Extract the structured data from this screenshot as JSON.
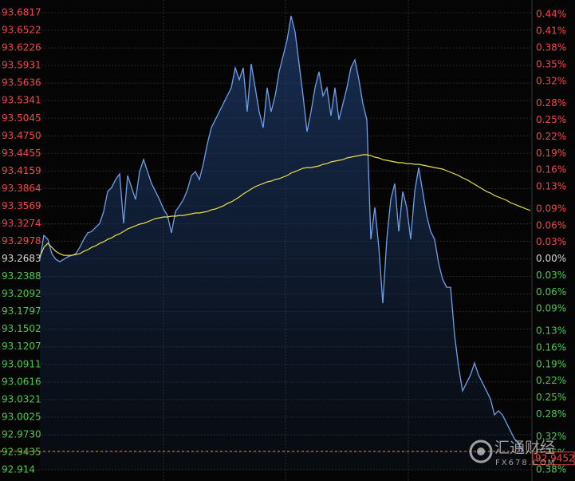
{
  "chart_data": {
    "type": "line",
    "up_color": "#f04848",
    "down_color": "#4cc94c",
    "flat_color": "#d8d8d8",
    "grid": true,
    "area_color": "#1d3a6a",
    "ylim": [
      92.914,
      93.6817
    ],
    "yticks": [
      93.6817,
      93.6522,
      93.6226,
      93.5931,
      93.5636,
      93.5341,
      93.5045,
      {
        "value": 93.475,
        "label": "93.4750"
      },
      93.4455,
      93.4159,
      93.3864,
      93.3569,
      93.3274,
      93.2978,
      93.2683,
      93.2388,
      93.2092,
      93.1797,
      93.1502,
      93.1207,
      93.0911,
      93.0616,
      93.0321,
      93.0025,
      {
        "value": 92.973,
        "label": "92.9730"
      },
      92.9435,
      92.914
    ],
    "y2lim": [
      -0.3799,
      0.4432
    ],
    "y2ticks": [
      {
        "value": 0.44,
        "label": "0.44%"
      },
      {
        "value": 0.41,
        "label": "0.41%"
      },
      {
        "value": 0.38,
        "label": "0.38%"
      },
      {
        "value": 0.35,
        "label": "0.35%"
      },
      {
        "value": 0.32,
        "label": "0.32%"
      },
      {
        "value": 0.28,
        "label": "0.28%"
      },
      {
        "value": 0.25,
        "label": "0.25%"
      },
      {
        "value": 0.22,
        "label": "0.22%"
      },
      {
        "value": 0.19,
        "label": "0.19%"
      },
      {
        "value": 0.16,
        "label": "0.16%"
      },
      {
        "value": 0.13,
        "label": "0.13%"
      },
      {
        "value": 0.09,
        "label": "0.09%"
      },
      {
        "value": 0.06,
        "label": "0.06%"
      },
      {
        "value": 0.03,
        "label": "0.03%"
      },
      {
        "value": 0,
        "label": "0.00%"
      },
      {
        "value": -0.03,
        "label": "0.03%"
      },
      {
        "value": -0.06,
        "label": "0.06%"
      },
      {
        "value": -0.09,
        "label": "0.09%"
      },
      {
        "value": -0.13,
        "label": "0.13%"
      },
      {
        "value": -0.16,
        "label": "0.16%"
      },
      {
        "value": -0.19,
        "label": "0.19%"
      },
      {
        "value": -0.22,
        "label": "0.22%"
      },
      {
        "value": -0.25,
        "label": "0.25%"
      },
      {
        "value": -0.28,
        "label": "0.28%"
      },
      {
        "value": -0.32,
        "label": "0.32%"
      },
      {
        "value": -0.35,
        "label": "0.35%"
      },
      {
        "value": -0.38,
        "label": "0.38%"
      }
    ],
    "series": [
      {
        "color": "#6f9fe8",
        "values": [
          93.2676,
          93.3078,
          93.3011,
          93.277,
          93.2676,
          93.2636,
          93.2676,
          93.2717,
          93.2743,
          93.277,
          93.2877,
          93.3011,
          93.3119,
          93.3145,
          93.3212,
          93.3279,
          93.348,
          93.3815,
          93.3882,
          93.4016,
          93.411,
          93.3279,
          93.4083,
          93.3882,
          93.3681,
          93.415,
          93.4351,
          93.415,
          93.3949,
          93.3815,
          93.3681,
          93.3521,
          93.3413,
          93.3119,
          93.348,
          93.3574,
          93.3681,
          93.3842,
          93.4083,
          93.415,
          93.4016,
          93.4284,
          93.4619,
          93.4887,
          93.5021,
          93.5155,
          93.5289,
          93.5423,
          93.5557,
          93.5892,
          93.5691,
          93.5892,
          93.5155,
          93.5959,
          93.5557,
          93.5155,
          93.4887,
          93.5557,
          93.5155,
          93.5423,
          93.5825,
          93.6093,
          93.6361,
          93.6763,
          93.6495,
          93.5959,
          93.5423,
          93.482,
          93.5155,
          93.5557,
          93.5825,
          93.5423,
          93.5557,
          93.5088,
          93.5557,
          93.5021,
          93.5289,
          93.5557,
          93.5892,
          93.6026,
          93.5691,
          93.5289,
          93.5021,
          93.3011,
          93.3547,
          93.2877,
          93.1939,
          93.3011,
          93.3681,
          93.3949,
          93.3145,
          93.3815,
          93.3547,
          93.3011,
          93.3815,
          93.4217,
          93.3815,
          93.3413,
          93.3145,
          93.3011,
          93.2609,
          93.2341,
          93.2207,
          93.2207,
          93.1403,
          93.0867,
          93.0465,
          93.0599,
          93.0733,
          93.0934,
          93.0733,
          93.0599,
          93.0465,
          93.0331,
          93.0063,
          93.013,
          93.0063,
          92.9929,
          92.9795,
          92.9661,
          92.9594,
          92.946,
          null,
          null
        ]
      },
      {
        "color": "#e8e04a",
        "values": [
          93.2717,
          93.2877,
          93.2944,
          93.2877,
          93.281,
          93.277,
          93.2743,
          93.2743,
          93.2743,
          93.2757,
          93.277,
          93.281,
          93.2837,
          93.2877,
          93.2904,
          93.2944,
          93.2971,
          93.3011,
          93.3038,
          93.3078,
          93.3105,
          93.3145,
          93.3186,
          93.3212,
          93.3239,
          93.3266,
          93.3279,
          93.3306,
          93.3333,
          93.336,
          93.3373,
          93.3387,
          93.3387,
          93.34,
          93.34,
          93.3413,
          93.3413,
          93.3427,
          93.344,
          93.3454,
          93.3454,
          93.3467,
          93.348,
          93.3507,
          93.3521,
          93.3547,
          93.3574,
          93.3614,
          93.3641,
          93.3681,
          93.3722,
          93.3775,
          93.3815,
          93.3856,
          93.3896,
          93.3923,
          93.3949,
          93.3976,
          93.399,
          93.4016,
          93.403,
          93.4057,
          93.4083,
          93.4124,
          93.415,
          93.4177,
          93.4204,
          93.4217,
          93.4217,
          93.4231,
          93.4244,
          93.4271,
          93.4284,
          93.4311,
          93.4325,
          93.4338,
          93.4351,
          93.4378,
          93.4392,
          93.4405,
          93.4418,
          93.4432,
          93.4432,
          93.4418,
          93.4392,
          93.4378,
          93.4351,
          93.4338,
          93.4325,
          93.4311,
          93.4298,
          93.4298,
          93.4284,
          93.4284,
          93.4271,
          93.4271,
          93.4258,
          93.4244,
          93.4231,
          93.4217,
          93.4204,
          93.4191,
          93.4164,
          93.4137,
          93.411,
          93.4083,
          93.4043,
          93.4016,
          93.3976,
          93.3936,
          93.3896,
          93.3856,
          93.3815,
          93.3789,
          93.3748,
          93.3722,
          93.3695,
          93.3668,
          93.3628,
          93.3601,
          93.3574,
          93.3547,
          93.3521,
          93.3494
        ]
      }
    ],
    "last_price": 92.9452,
    "last_price_color": "#e08a2e",
    "watermark": {
      "title": "汇通财经",
      "subtitle": "FX678.COM"
    }
  }
}
